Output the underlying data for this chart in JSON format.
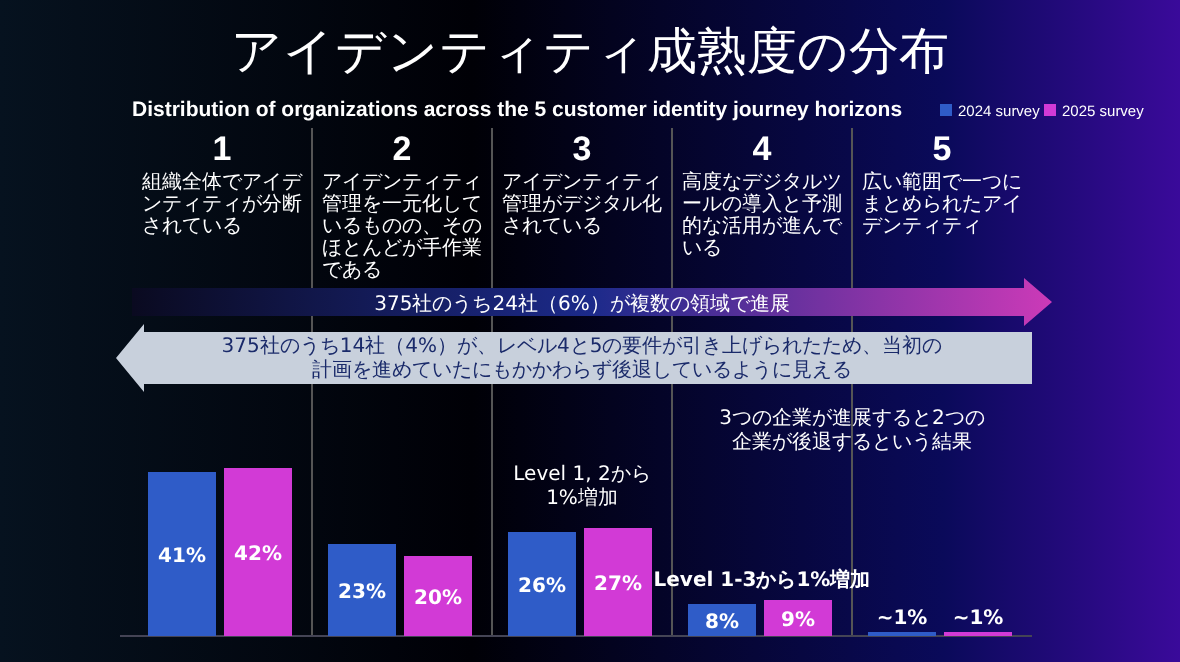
{
  "chart_data": {
    "type": "bar",
    "title": "アイデンティティ成熟度の分布",
    "subtitle": "Distribution of organizations across the 5 customer identity journey horizons",
    "categories": [
      "1",
      "2",
      "3",
      "4",
      "5"
    ],
    "series": [
      {
        "name": "2024 survey",
        "color": "#2f5cc8",
        "values": [
          41,
          23,
          26,
          8,
          1
        ],
        "value_labels": [
          "41%",
          "23%",
          "26%",
          "8%",
          "~1%"
        ]
      },
      {
        "name": "2025 survey",
        "color": "#d23ad6",
        "values": [
          42,
          20,
          27,
          9,
          1
        ],
        "value_labels": [
          "42%",
          "20%",
          "27%",
          "9%",
          "~1%"
        ]
      }
    ],
    "annotations": [
      "組織全体でアイデンティティが分断されている",
      "アイデンティティ管理を一元化しているものの、そのほとんどが手作業である",
      "アイデンティティ管理がデジタル化されている",
      "高度なデジタルツールの導入と予測的な活用が進んでいる",
      "広い範囲で一つにまとめられたアイデンティティ",
      "Level 1, 2から1%増加",
      "Level 1-3から1%増加",
      "3つの企業が進展すると2つの企業が後退するという結果",
      "375社のうち24社（6%）が複数の領域で進展",
      "375社のうち14社（4%）が、レベル4と5の要件が引き上げられたため、当初の計画を進めていたにもかかわらず後退しているように見える"
    ],
    "legend": "top right"
  }
}
